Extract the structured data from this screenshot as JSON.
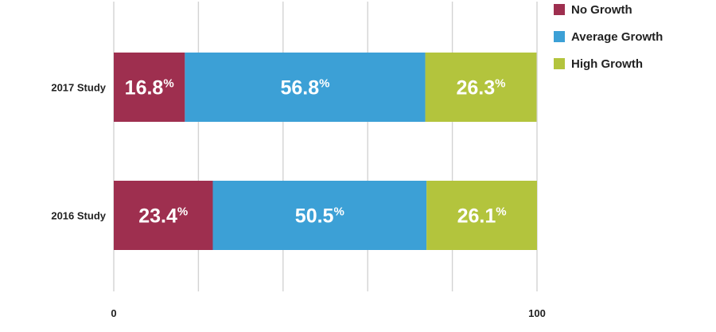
{
  "chart_data": {
    "type": "bar",
    "orientation": "horizontal",
    "stacked": true,
    "categories": [
      "2017 Study",
      "2016 Study"
    ],
    "series": [
      {
        "name": "No Growth",
        "color": "#9e2f4f",
        "values": [
          16.8,
          23.4
        ]
      },
      {
        "name": "Average Growth",
        "color": "#3ca0d6",
        "values": [
          56.8,
          50.5
        ]
      },
      {
        "name": "High Growth",
        "color": "#b3c43d",
        "values": [
          26.3,
          26.1
        ]
      }
    ],
    "value_suffix": "%",
    "x_ticks": [
      {
        "value": 0,
        "label": "0"
      },
      {
        "value": 100,
        "label": "100"
      }
    ],
    "xlim": [
      0,
      100
    ],
    "grid": true,
    "legend_position": "top-right"
  }
}
